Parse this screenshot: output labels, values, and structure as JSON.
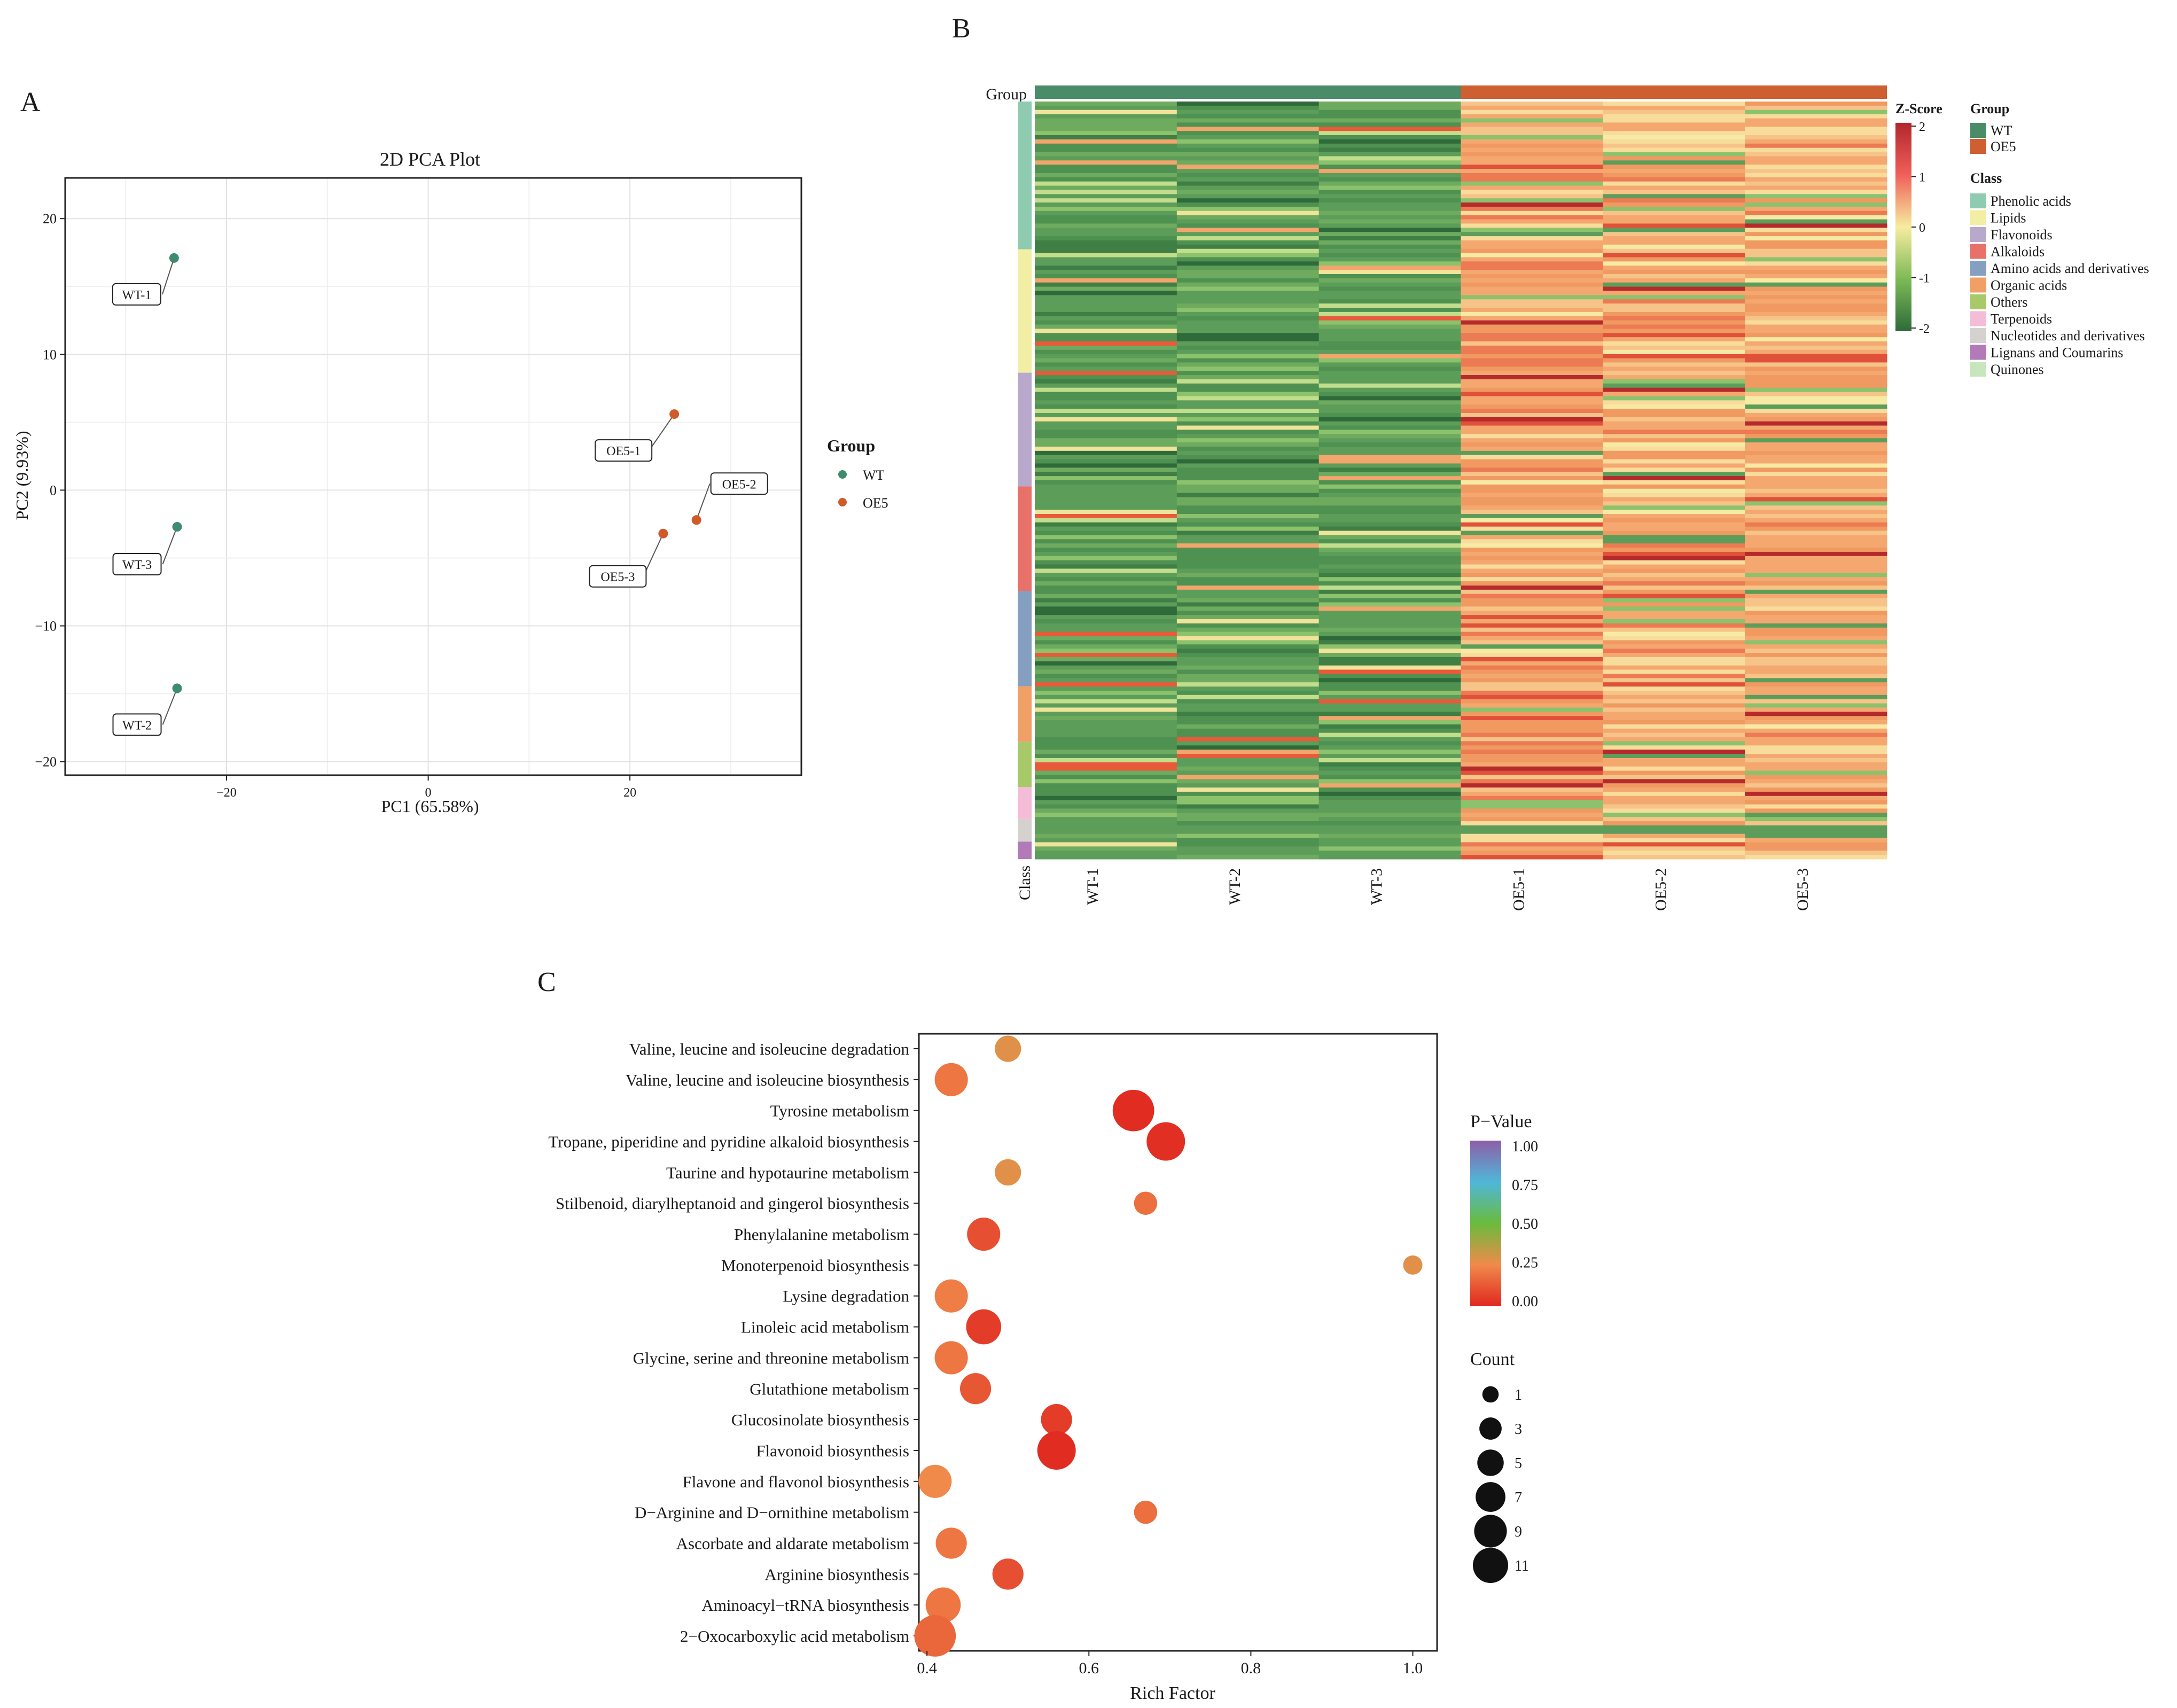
{
  "panels": {
    "a": "A",
    "b": "B",
    "c": "C"
  },
  "pca": {
    "chart_data": {
      "type": "scatter",
      "title": "2D PCA Plot",
      "xlabel": "PC1 (65.58%)",
      "ylabel": "PC2 (9.93%)",
      "xlim": [
        -36,
        37
      ],
      "ylim": [
        -21,
        23
      ],
      "xticks": [
        -20,
        0,
        20
      ],
      "yticks": [
        -20,
        -10,
        0,
        10,
        20
      ],
      "grid": true,
      "legend": {
        "title": "Group",
        "position": "right",
        "entries": [
          "WT",
          "OE5"
        ]
      },
      "series": [
        {
          "name": "WT",
          "color": "#3e8c6e",
          "points": [
            {
              "label": "WT-1",
              "x": -25.2,
              "y": 17.1
            },
            {
              "label": "WT-3",
              "x": -24.9,
              "y": -2.7
            },
            {
              "label": "WT-2",
              "x": -24.9,
              "y": -14.6
            }
          ]
        },
        {
          "name": "OE5",
          "color": "#cf5a2a",
          "points": [
            {
              "label": "OE5-1",
              "x": 24.4,
              "y": 5.6
            },
            {
              "label": "OE5-2",
              "x": 26.6,
              "y": -2.2
            },
            {
              "label": "OE5-3",
              "x": 23.3,
              "y": -3.2
            }
          ]
        }
      ]
    }
  },
  "heatmap": {
    "chart_data": {
      "type": "heatmap",
      "samples": [
        "WT-1",
        "WT-2",
        "WT-3",
        "OE5-1",
        "OE5-2",
        "OE5-3"
      ],
      "group_annotation_label": "Group",
      "class_annotation_label": "Class",
      "groups": [
        {
          "name": "WT",
          "color": "#4a8c67",
          "samples": 3
        },
        {
          "name": "OE5",
          "color": "#cd5f30",
          "samples": 3
        }
      ],
      "classes": [
        {
          "name": "Phenolic acids",
          "color": "#8ecbb0",
          "fraction": 0.195
        },
        {
          "name": "Lipids",
          "color": "#f2eea4",
          "fraction": 0.163
        },
        {
          "name": "Flavonoids",
          "color": "#b8a8cc",
          "fraction": 0.15
        },
        {
          "name": "Alkaloids",
          "color": "#e8716a",
          "fraction": 0.138
        },
        {
          "name": "Amino acids and derivatives",
          "color": "#849fbf",
          "fraction": 0.126
        },
        {
          "name": "Organic acids",
          "color": "#f0a066",
          "fraction": 0.073
        },
        {
          "name": "Others",
          "color": "#a8c96a",
          "fraction": 0.06
        },
        {
          "name": "Terpenoids",
          "color": "#f4bcd6",
          "fraction": 0.042
        },
        {
          "name": "Nucleotides and derivatives",
          "color": "#d4d1cf",
          "fraction": 0.03
        },
        {
          "name": "Lignans and Coumarins",
          "color": "#b27ab8",
          "fraction": 0.023
        },
        {
          "name": "Quinones",
          "color": "#c7e6bd",
          "fraction": 0
        }
      ],
      "colorbar": {
        "title": "Z-Score",
        "ticks": [
          2,
          1,
          0,
          -1,
          -2
        ],
        "colors": [
          "#b2262c",
          "#f0605a",
          "#f7eca0",
          "#7dba55",
          "#2e6b3a"
        ]
      },
      "legend_titles": {
        "group": "Group",
        "class": "Class"
      }
    }
  },
  "enrichment": {
    "chart_data": {
      "type": "scatter",
      "xlabel": "Rich Factor",
      "xlim": [
        0.39,
        1.03
      ],
      "xticks": [
        0.4,
        0.6,
        0.8,
        1.0
      ],
      "xtick_labels": [
        "0.4",
        "0.6",
        "0.8",
        "1.0"
      ],
      "pathways": [
        {
          "name": "Valine, leucine and isoleucine degradation",
          "rich_factor": 0.5,
          "count": 3,
          "pvalue": 0.28
        },
        {
          "name": "Valine, leucine and isoleucine biosynthesis",
          "rich_factor": 0.43,
          "count": 6,
          "pvalue": 0.2
        },
        {
          "name": "Tyrosine metabolism",
          "rich_factor": 0.655,
          "count": 11,
          "pvalue": 0.01
        },
        {
          "name": "Tropane, piperidine and pyridine alkaloid biosynthesis",
          "rich_factor": 0.695,
          "count": 9,
          "pvalue": 0.02
        },
        {
          "name": "Taurine and hypotaurine metabolism",
          "rich_factor": 0.5,
          "count": 3,
          "pvalue": 0.28
        },
        {
          "name": "Stilbenoid, diarylheptanoid and gingerol biosynthesis",
          "rich_factor": 0.67,
          "count": 2,
          "pvalue": 0.18
        },
        {
          "name": "Phenylalanine metabolism",
          "rich_factor": 0.47,
          "count": 6,
          "pvalue": 0.1
        },
        {
          "name": "Monoterpenoid biosynthesis",
          "rich_factor": 1.0,
          "count": 1,
          "pvalue": 0.28
        },
        {
          "name": "Lysine degradation",
          "rich_factor": 0.43,
          "count": 6,
          "pvalue": 0.22
        },
        {
          "name": "Linoleic acid metabolism",
          "rich_factor": 0.47,
          "count": 7,
          "pvalue": 0.05
        },
        {
          "name": "Glycine, serine and threonine metabolism",
          "rich_factor": 0.43,
          "count": 6,
          "pvalue": 0.2
        },
        {
          "name": "Glutathione metabolism",
          "rich_factor": 0.46,
          "count": 5,
          "pvalue": 0.12
        },
        {
          "name": "Glucosinolate biosynthesis",
          "rich_factor": 0.56,
          "count": 5,
          "pvalue": 0.05
        },
        {
          "name": "Flavonoid biosynthesis",
          "rich_factor": 0.56,
          "count": 9,
          "pvalue": 0.01
        },
        {
          "name": "Flavone and flavonol biosynthesis",
          "rich_factor": 0.41,
          "count": 6,
          "pvalue": 0.25
        },
        {
          "name": "D−Arginine and D−ornithine metabolism",
          "rich_factor": 0.67,
          "count": 2,
          "pvalue": 0.18
        },
        {
          "name": "Ascorbate and aldarate metabolism",
          "rich_factor": 0.43,
          "count": 5,
          "pvalue": 0.2
        },
        {
          "name": "Arginine biosynthesis",
          "rich_factor": 0.5,
          "count": 5,
          "pvalue": 0.1
        },
        {
          "name": "Aminoacyl−tRNA biosynthesis",
          "rich_factor": 0.42,
          "count": 7,
          "pvalue": 0.2
        },
        {
          "name": "2−Oxocarboxylic acid metabolism",
          "rich_factor": 0.41,
          "count": 11,
          "pvalue": 0.16
        }
      ],
      "pvalue_legend": {
        "title": "P−Value",
        "ticks": [
          1.0,
          0.75,
          0.5,
          0.25,
          0.0
        ],
        "tick_labels": [
          "1.00",
          "0.75",
          "0.50",
          "0.25",
          "0.00"
        ]
      },
      "count_legend": {
        "title": "Count",
        "values": [
          1,
          3,
          5,
          7,
          9,
          11
        ]
      }
    }
  }
}
